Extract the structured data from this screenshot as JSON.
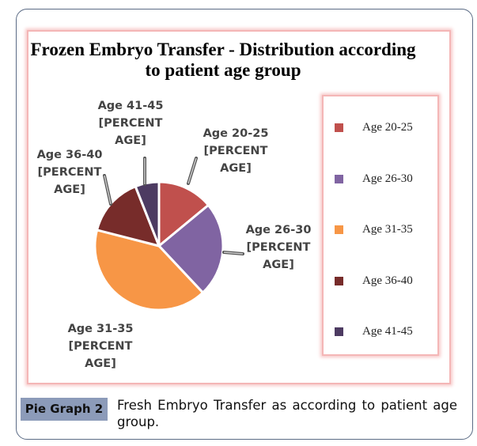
{
  "chart_data": {
    "type": "pie",
    "title": "Frozen Embryo Transfer - Distribution according to patient age group",
    "categories": [
      "Age 20-25",
      "Age 26-30",
      "Age 31-35",
      "Age 36-40",
      "Age 41-45"
    ],
    "values": [
      14,
      24,
      41,
      15,
      6
    ],
    "colors": [
      "#c0504d",
      "#8064a2",
      "#f79646",
      "#772c2a",
      "#4d3b62"
    ],
    "data_labels": [
      "Age 20-25 [PERCENT AGE]",
      "Age 26-30 [PERCENT AGE]",
      "Age 31-35 [PERCENT AGE]",
      "Age 36-40 [PERCENT AGE]",
      "Age 41-45 [PERCENT AGE]"
    ],
    "legend_position": "right"
  },
  "caption": {
    "badge": "Pie Graph 2",
    "text": "Fresh Embryo Transfer as according to patient age group."
  }
}
